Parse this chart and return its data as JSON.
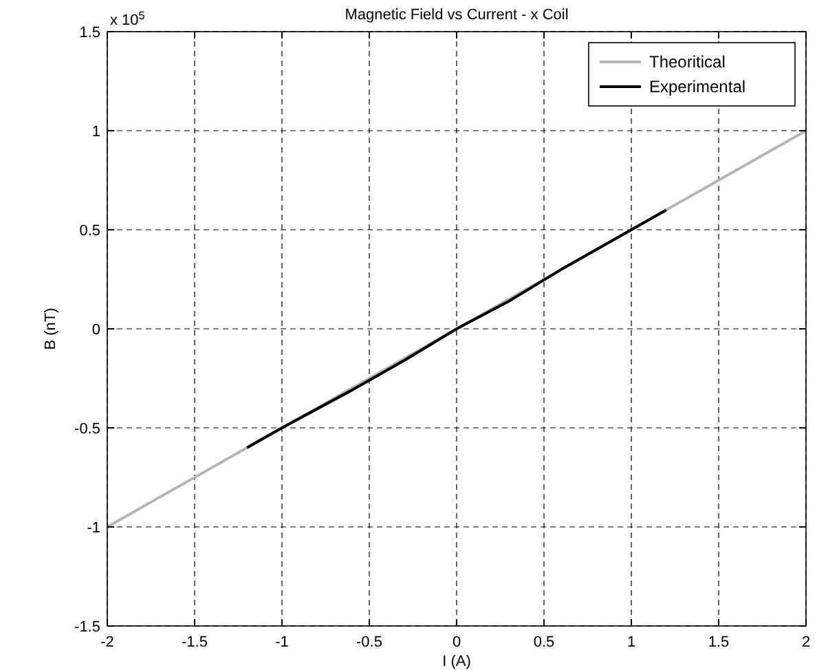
{
  "chart_data": {
    "type": "line",
    "title": "Magnetic Field vs Current - x Coil",
    "xlabel": "I (A)",
    "ylabel": "B (nT)",
    "annotations": [
      "x 10$^{5}$"
    ],
    "series": [
      {
        "name": "Theoritical",
        "color": "#b4b4b4",
        "x": [
          -2,
          2
        ],
        "values": [
          -1,
          1
        ]
      },
      {
        "name": "Experimental",
        "color": "#000000",
        "x": [
          -1.2,
          -1,
          -0.6,
          -0.3,
          0,
          0.3,
          0.6,
          1,
          1.2
        ],
        "values": [
          -0.6,
          -0.5,
          -0.31,
          -0.16,
          0,
          0.14,
          0.3,
          0.5,
          0.6
        ]
      }
    ],
    "xlim": [
      -2,
      2
    ],
    "xticks": [
      -2,
      -1.5,
      -1,
      -0.5,
      0,
      0.5,
      1,
      1.5,
      2
    ],
    "ylim": [
      -1.5,
      1.5
    ],
    "yticks": [
      -1.5,
      -1,
      -0.5,
      0,
      0.5,
      1,
      1.5
    ],
    "grid": true,
    "legend": "top right",
    "line_style": "solid",
    "marker": "none"
  }
}
